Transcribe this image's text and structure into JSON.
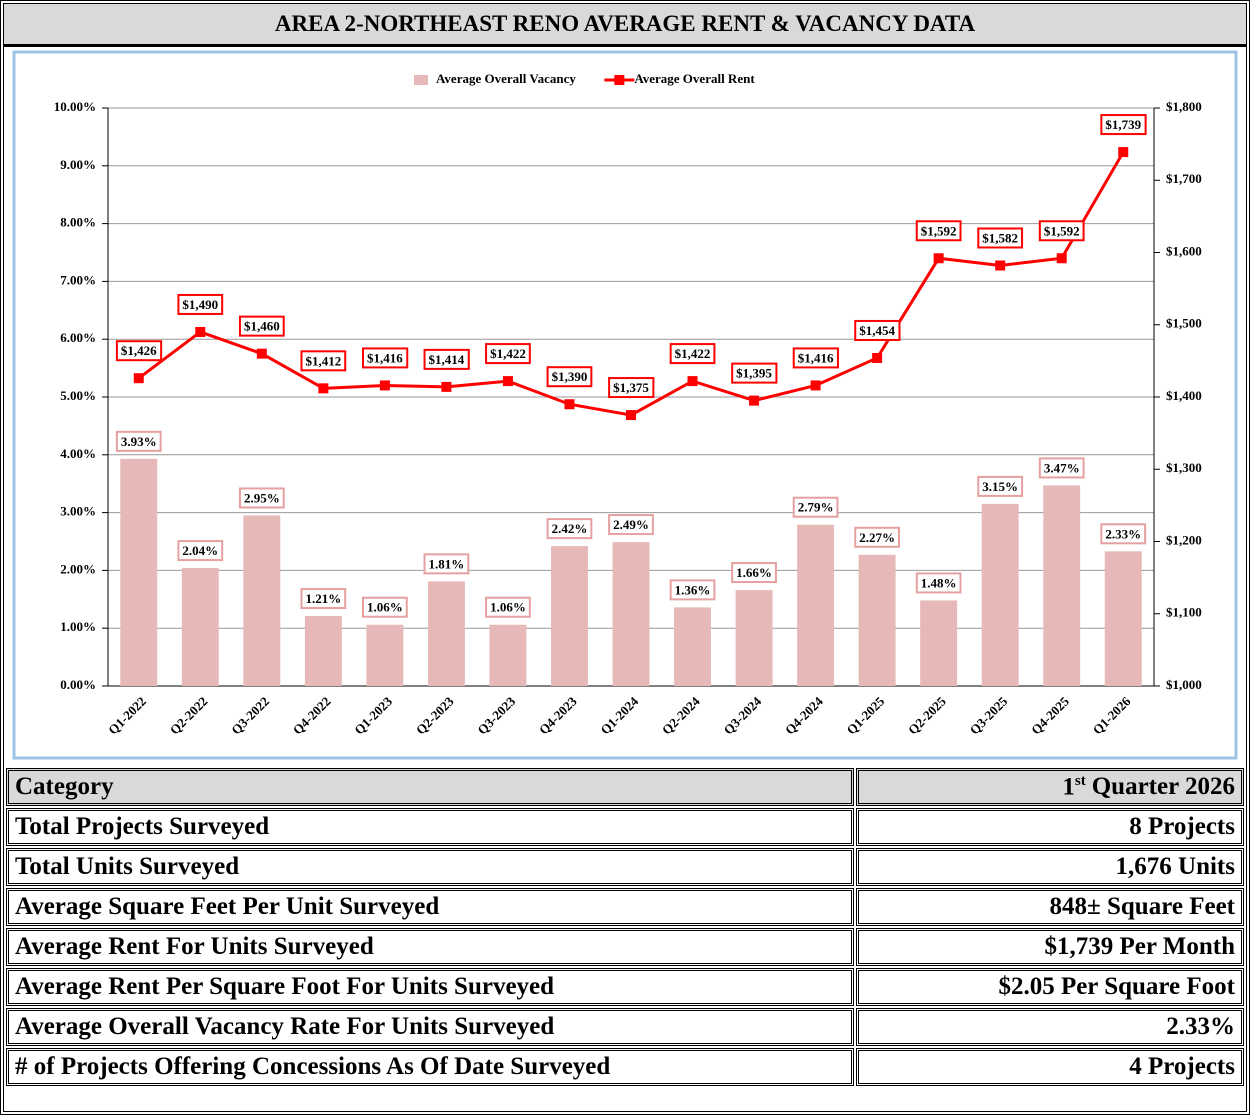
{
  "header": {
    "title": "AREA 2-NORTHEAST RENO AVERAGE RENT & VACANCY DATA"
  },
  "chart_data": {
    "type": "combo",
    "categories": [
      "Q1-2022",
      "Q2-2022",
      "Q3-2022",
      "Q4-2022",
      "Q1-2023",
      "Q2-2023",
      "Q3-2023",
      "Q4-2023",
      "Q1-2024",
      "Q2-2024",
      "Q3-2024",
      "Q4-2024",
      "Q1-2025",
      "Q2-2025",
      "Q3-2025",
      "Q4-2025",
      "Q1-2026"
    ],
    "series": [
      {
        "name": "Average Overall Vacancy",
        "type": "bar",
        "color": "#e6b8b7",
        "label_border": "#e6a0a0",
        "values": [
          3.93,
          2.04,
          2.95,
          1.21,
          1.06,
          1.81,
          1.06,
          2.42,
          2.49,
          1.36,
          1.66,
          2.79,
          2.27,
          1.48,
          3.15,
          3.47,
          2.33
        ],
        "value_labels": [
          "3.93%",
          "2.04%",
          "2.95%",
          "1.21%",
          "1.06%",
          "1.81%",
          "1.06%",
          "2.42%",
          "2.49%",
          "1.36%",
          "1.66%",
          "2.79%",
          "2.27%",
          "1.48%",
          "3.15%",
          "3.47%",
          "2.33%"
        ]
      },
      {
        "name": "Average Overall Rent",
        "type": "line",
        "axis": "y2",
        "color": "#ff0000",
        "label_border": "#ff0000",
        "values": [
          1426,
          1490,
          1460,
          1412,
          1416,
          1414,
          1422,
          1390,
          1375,
          1422,
          1395,
          1416,
          1454,
          1592,
          1582,
          1592,
          1739
        ],
        "value_labels": [
          "$1,426",
          "$1,490",
          "$1,460",
          "$1,412",
          "$1,416",
          "$1,414",
          "$1,422",
          "$1,390",
          "$1,375",
          "$1,422",
          "$1,395",
          "$1,416",
          "$1,454",
          "$1,592",
          "$1,582",
          "$1,592",
          "$1,739"
        ]
      }
    ],
    "ylim": [
      0,
      10
    ],
    "yticks": [
      {
        "value": 0,
        "label": "0.00%"
      },
      {
        "value": 1,
        "label": "1.00%"
      },
      {
        "value": 2,
        "label": "2.00%"
      },
      {
        "value": 3,
        "label": "3.00%"
      },
      {
        "value": 4,
        "label": "4.00%"
      },
      {
        "value": 5,
        "label": "5.00%"
      },
      {
        "value": 6,
        "label": "6.00%"
      },
      {
        "value": 7,
        "label": "7.00%"
      },
      {
        "value": 8,
        "label": "8.00%"
      },
      {
        "value": 9,
        "label": "9.00%"
      },
      {
        "value": 10,
        "label": "10.00%"
      }
    ],
    "y2lim": [
      1000,
      1800
    ],
    "y2ticks": [
      {
        "value": 1000,
        "label": "$1,000"
      },
      {
        "value": 1100,
        "label": "$1,100"
      },
      {
        "value": 1200,
        "label": "$1,200"
      },
      {
        "value": 1300,
        "label": "$1,300"
      },
      {
        "value": 1400,
        "label": "$1,400"
      },
      {
        "value": 1500,
        "label": "$1,500"
      },
      {
        "value": 1600,
        "label": "$1,600"
      },
      {
        "value": 1700,
        "label": "$1,700"
      },
      {
        "value": 1800,
        "label": "$1,800"
      }
    ],
    "grid": true,
    "legend": "top"
  },
  "table": {
    "header": {
      "label": "Category",
      "period": {
        "number": "1",
        "suffix": "st",
        "rest": "Quarter 2026"
      }
    },
    "rows": [
      [
        "Total Projects Surveyed",
        "8 Projects"
      ],
      [
        "Total Units Surveyed",
        "1,676 Units"
      ],
      [
        "Average Square Feet Per Unit Surveyed",
        "848± Square Feet"
      ],
      [
        "Average Rent For Units Surveyed",
        "$1,739 Per Month"
      ],
      [
        "Average Rent Per Square Foot For Units Surveyed",
        "$2.05 Per Square Foot"
      ],
      [
        "Average Overall Vacancy Rate For Units Surveyed",
        "2.33%"
      ],
      [
        "# of Projects Offering Concessions As Of Date Surveyed",
        "4 Projects"
      ]
    ]
  }
}
